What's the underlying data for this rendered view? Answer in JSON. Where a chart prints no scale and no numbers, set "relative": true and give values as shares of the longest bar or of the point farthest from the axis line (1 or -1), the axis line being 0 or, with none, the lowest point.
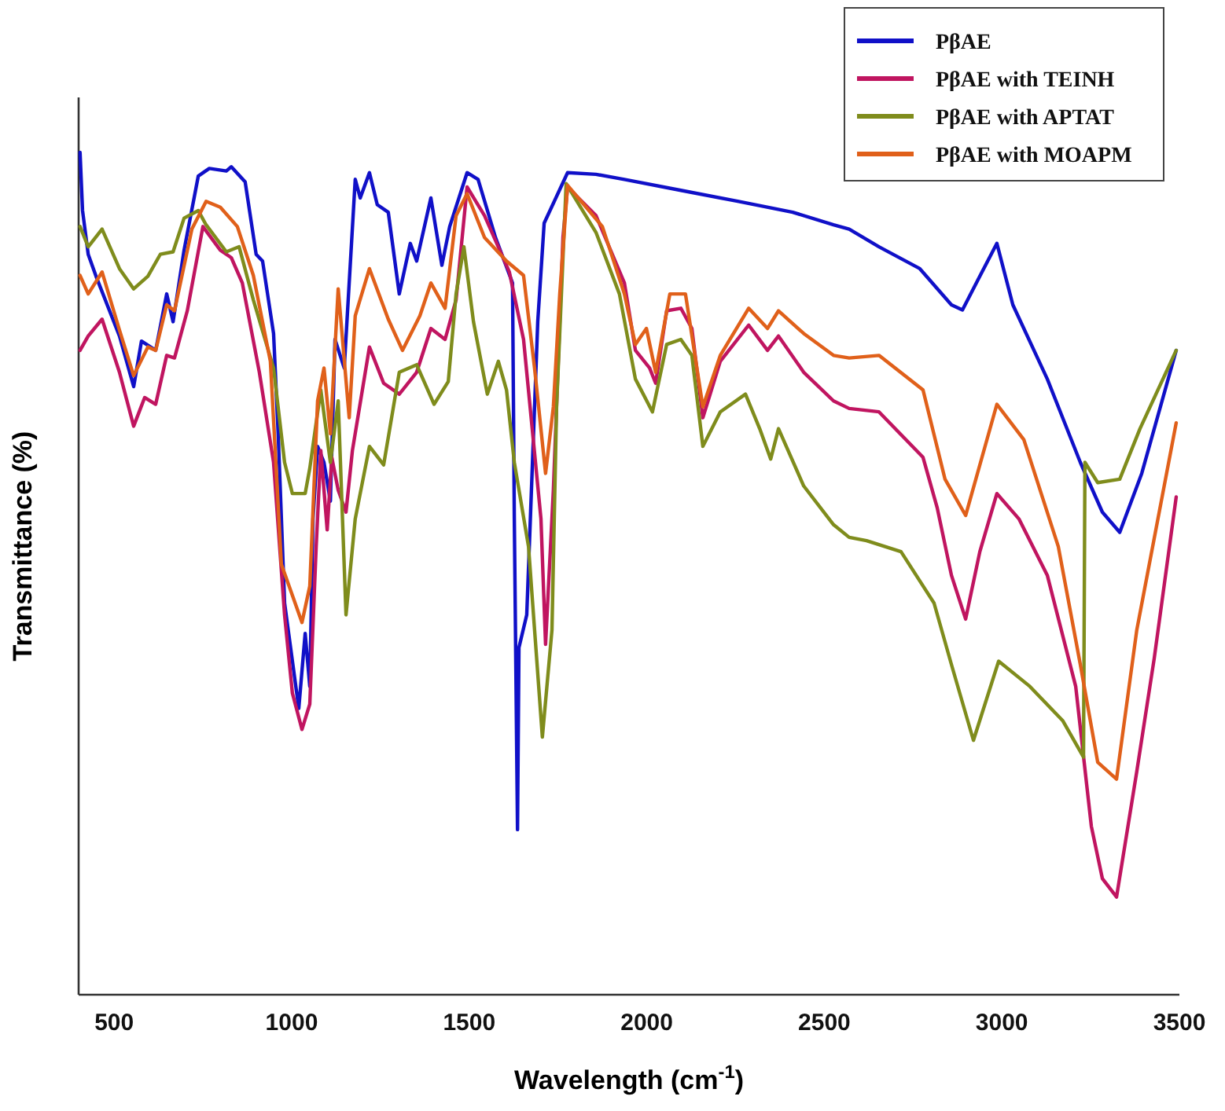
{
  "chart_data": {
    "type": "line",
    "xlabel": "Wavelength (cm$^{-1}$)",
    "ylabel": "Transmittance (%)",
    "relative": true,
    "xlim": [
      400,
      3500
    ],
    "xticks": [
      500,
      1000,
      1500,
      2000,
      2500,
      3000,
      3500
    ],
    "legend": "top right",
    "series": [
      {
        "name": "PβAE",
        "color": "#1010c8",
        "x": [
          404,
          411,
          427,
          449,
          515,
          555,
          577,
          617,
          648,
          666,
          697,
          737,
          768,
          816,
          830,
          869,
          900,
          918,
          949,
          962,
          980,
          1020,
          1038,
          1051,
          1060,
          1073,
          1091,
          1109,
          1122,
          1148,
          1179,
          1193,
          1219,
          1241,
          1272,
          1303,
          1334,
          1352,
          1392,
          1423,
          1445,
          1494,
          1525,
          1574,
          1622,
          1627,
          1636,
          1640,
          1662,
          1693,
          1711,
          1777,
          1857,
          1937,
          2096,
          2256,
          2411,
          2526,
          2570,
          2654,
          2769,
          2858,
          2889,
          2938,
          2986,
          3031,
          3128,
          3221,
          3283,
          3332,
          3394,
          3491
        ],
        "values": [
          1.0,
          0.931,
          0.879,
          0.853,
          0.782,
          0.722,
          0.776,
          0.765,
          0.832,
          0.799,
          0.884,
          0.972,
          0.981,
          0.978,
          0.983,
          0.965,
          0.879,
          0.871,
          0.785,
          0.666,
          0.465,
          0.34,
          0.429,
          0.366,
          0.565,
          0.651,
          0.632,
          0.586,
          0.778,
          0.744,
          0.968,
          0.946,
          0.976,
          0.938,
          0.929,
          0.832,
          0.892,
          0.871,
          0.946,
          0.866,
          0.912,
          0.976,
          0.968,
          0.899,
          0.845,
          0.565,
          0.196,
          0.412,
          0.451,
          0.799,
          0.916,
          0.976,
          0.974,
          0.968,
          0.955,
          0.942,
          0.929,
          0.914,
          0.909,
          0.888,
          0.862,
          0.819,
          0.813,
          0.853,
          0.892,
          0.819,
          0.731,
          0.632,
          0.573,
          0.549,
          0.619,
          0.765
        ]
      },
      {
        "name": "PβAE with TEINH",
        "color": "#c01560",
        "x": [
          404,
          427,
          466,
          515,
          555,
          586,
          617,
          648,
          670,
          706,
          750,
          799,
          830,
          861,
          909,
          949,
          980,
          1002,
          1029,
          1051,
          1069,
          1082,
          1100,
          1113,
          1131,
          1153,
          1171,
          1219,
          1259,
          1303,
          1352,
          1392,
          1432,
          1463,
          1494,
          1543,
          1613,
          1653,
          1702,
          1715,
          1737,
          1764,
          1777,
          1857,
          1937,
          1968,
          2008,
          2025,
          2056,
          2096,
          2127,
          2158,
          2207,
          2287,
          2340,
          2371,
          2442,
          2526,
          2570,
          2654,
          2778,
          2818,
          2858,
          2898,
          2938,
          2986,
          3048,
          3128,
          3208,
          3252,
          3283,
          3323,
          3380,
          3429,
          3491
        ],
        "values": [
          0.765,
          0.782,
          0.802,
          0.739,
          0.675,
          0.709,
          0.701,
          0.759,
          0.756,
          0.812,
          0.912,
          0.884,
          0.875,
          0.845,
          0.739,
          0.632,
          0.451,
          0.358,
          0.315,
          0.345,
          0.532,
          0.646,
          0.552,
          0.638,
          0.599,
          0.573,
          0.646,
          0.769,
          0.726,
          0.713,
          0.739,
          0.791,
          0.778,
          0.825,
          0.959,
          0.925,
          0.858,
          0.778,
          0.565,
          0.416,
          0.599,
          0.899,
          0.959,
          0.925,
          0.845,
          0.765,
          0.744,
          0.726,
          0.812,
          0.815,
          0.791,
          0.685,
          0.752,
          0.795,
          0.765,
          0.782,
          0.739,
          0.705,
          0.696,
          0.692,
          0.638,
          0.578,
          0.498,
          0.446,
          0.526,
          0.595,
          0.565,
          0.498,
          0.366,
          0.2,
          0.138,
          0.116,
          0.265,
          0.399,
          0.591
        ]
      },
      {
        "name": "PβAE with APTAT",
        "color": "#7f8c1c",
        "x": [
          404,
          427,
          466,
          515,
          555,
          595,
          630,
          666,
          697,
          737,
          759,
          816,
          852,
          892,
          949,
          980,
          1002,
          1038,
          1051,
          1082,
          1109,
          1131,
          1153,
          1179,
          1219,
          1259,
          1303,
          1352,
          1401,
          1441,
          1463,
          1485,
          1512,
          1551,
          1582,
          1605,
          1627,
          1667,
          1706,
          1733,
          1746,
          1773,
          1857,
          1923,
          1968,
          2016,
          2056,
          2096,
          2127,
          2158,
          2207,
          2278,
          2318,
          2349,
          2371,
          2442,
          2526,
          2570,
          2619,
          2716,
          2809,
          2858,
          2920,
          2991,
          3079,
          3172,
          3230,
          3234,
          3270,
          3332,
          3389,
          3491
        ],
        "values": [
          0.912,
          0.888,
          0.909,
          0.862,
          0.838,
          0.853,
          0.879,
          0.882,
          0.922,
          0.931,
          0.914,
          0.882,
          0.888,
          0.825,
          0.744,
          0.632,
          0.595,
          0.595,
          0.625,
          0.718,
          0.632,
          0.705,
          0.451,
          0.565,
          0.651,
          0.629,
          0.739,
          0.748,
          0.701,
          0.728,
          0.832,
          0.888,
          0.799,
          0.713,
          0.752,
          0.718,
          0.632,
          0.532,
          0.306,
          0.433,
          0.698,
          0.963,
          0.905,
          0.832,
          0.731,
          0.692,
          0.772,
          0.778,
          0.759,
          0.651,
          0.692,
          0.713,
          0.672,
          0.636,
          0.672,
          0.604,
          0.558,
          0.543,
          0.539,
          0.526,
          0.465,
          0.392,
          0.302,
          0.396,
          0.366,
          0.325,
          0.282,
          0.632,
          0.608,
          0.612,
          0.672,
          0.765
        ]
      },
      {
        "name": "PβAE with MOAPM",
        "color": "#e0601a",
        "x": [
          404,
          427,
          466,
          515,
          555,
          595,
          617,
          648,
          670,
          719,
          759,
          799,
          847,
          892,
          940,
          971,
          1029,
          1051,
          1073,
          1091,
          1109,
          1131,
          1162,
          1179,
          1219,
          1272,
          1312,
          1361,
          1392,
          1432,
          1463,
          1494,
          1543,
          1605,
          1653,
          1684,
          1715,
          1737,
          1755,
          1777,
          1875,
          1937,
          1968,
          1999,
          2025,
          2065,
          2109,
          2158,
          2207,
          2287,
          2340,
          2371,
          2442,
          2526,
          2570,
          2654,
          2778,
          2840,
          2898,
          2986,
          3062,
          3159,
          3221,
          3270,
          3323,
          3380,
          3491
        ],
        "values": [
          0.854,
          0.832,
          0.858,
          0.789,
          0.735,
          0.769,
          0.765,
          0.819,
          0.812,
          0.909,
          0.942,
          0.935,
          0.912,
          0.854,
          0.752,
          0.511,
          0.442,
          0.485,
          0.705,
          0.744,
          0.666,
          0.838,
          0.685,
          0.806,
          0.862,
          0.802,
          0.765,
          0.806,
          0.845,
          0.815,
          0.925,
          0.951,
          0.899,
          0.871,
          0.854,
          0.744,
          0.619,
          0.698,
          0.832,
          0.961,
          0.912,
          0.832,
          0.772,
          0.791,
          0.739,
          0.832,
          0.832,
          0.698,
          0.759,
          0.815,
          0.791,
          0.812,
          0.785,
          0.759,
          0.756,
          0.759,
          0.718,
          0.612,
          0.569,
          0.701,
          0.659,
          0.532,
          0.392,
          0.276,
          0.256,
          0.433,
          0.679
        ]
      }
    ]
  }
}
